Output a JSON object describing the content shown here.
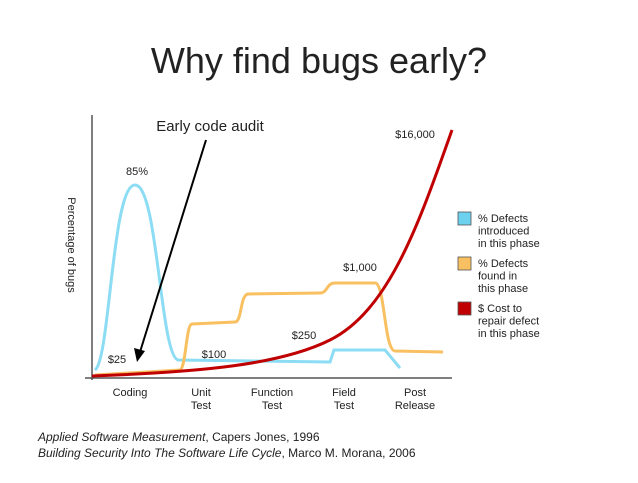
{
  "slide": {
    "title": "Why find bugs early?",
    "annotation": "Early code audit",
    "y_axis_label": "Percentage of bugs",
    "categories": [
      [
        "Coding"
      ],
      [
        "Unit",
        "Test"
      ],
      [
        "Function",
        "Test"
      ],
      [
        "Field",
        "Test"
      ],
      [
        "Post",
        "Release"
      ]
    ],
    "point_labels": [
      "85%",
      "$25",
      "$100",
      "$250",
      "$1,000",
      "$16,000"
    ],
    "legend": [
      {
        "lines": [
          "% Defects",
          "introduced",
          "in this phase"
        ],
        "color": "#6cd0ef"
      },
      {
        "lines": [
          "% Defects",
          "found in",
          "this phase"
        ],
        "color": "#f8c060"
      },
      {
        "lines": [
          "$ Cost to",
          "repair defect",
          "in this phase"
        ],
        "color": "#c00000"
      }
    ],
    "citations": [
      {
        "italic": "Applied Software Measurement",
        "rest": ", Capers Jones, 1996"
      },
      {
        "italic": "Building Security Into The Software Life Cycle",
        "rest": ", Marco M. Morana, 2006"
      }
    ]
  }
}
